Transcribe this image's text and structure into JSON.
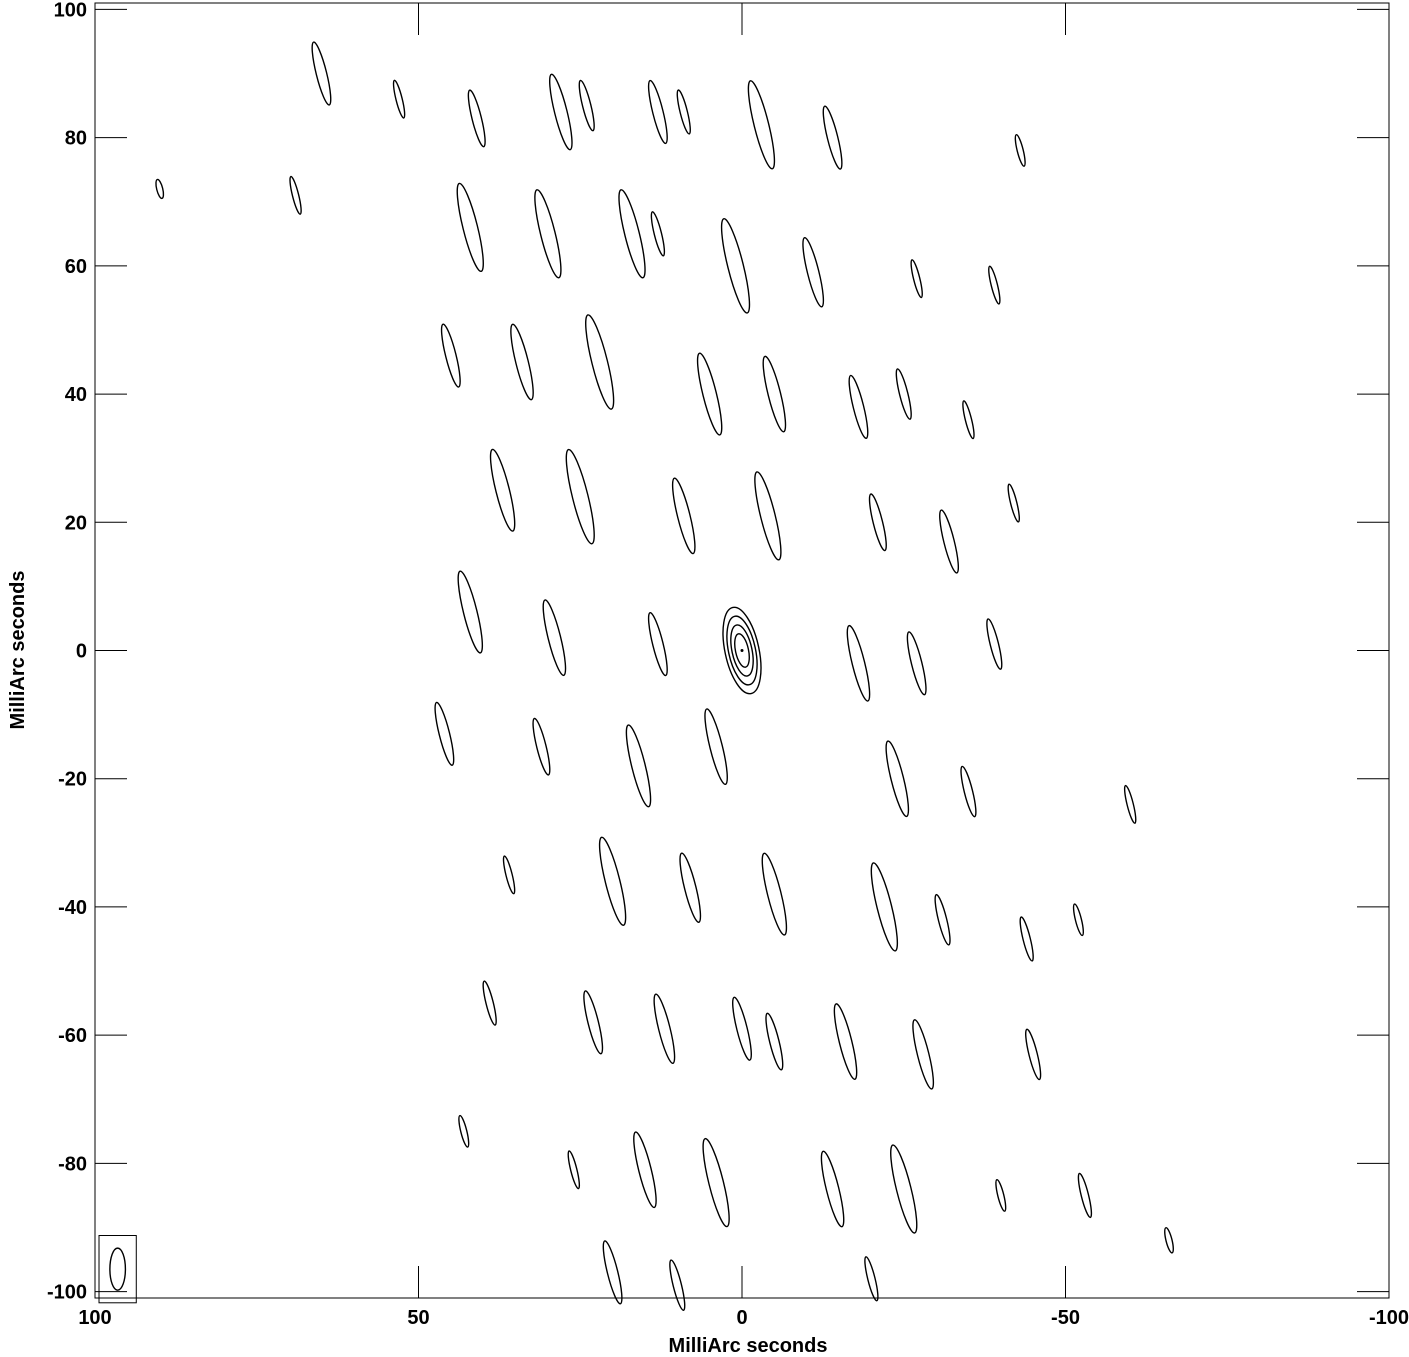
{
  "chart_data": {
    "type": "contour",
    "title": "",
    "xlabel": "MilliArc seconds",
    "ylabel": "MilliArc seconds",
    "xlim": [
      100,
      -100
    ],
    "ylim": [
      -101,
      101
    ],
    "x_ticks": [
      100,
      50,
      0,
      -50,
      -100
    ],
    "y_ticks": [
      100,
      80,
      60,
      40,
      20,
      0,
      -20,
      -40,
      -60,
      -80,
      -100
    ],
    "x_tick_labels": [
      "100",
      "50",
      "0",
      "-50",
      "-100"
    ],
    "y_tick_labels": [
      "100",
      "80",
      "60",
      "40",
      "20",
      "0",
      "-20",
      "-40",
      "-60",
      "-80",
      "-100"
    ],
    "grid": false,
    "contour_color": "#000000",
    "main_source": {
      "x": 0,
      "y": 0,
      "levels": 4
    },
    "beam": {
      "x": 96.5,
      "y": -96.5,
      "major": 6.5,
      "minor": 2.4
    },
    "features": [
      {
        "x": 65,
        "y": 90,
        "len": 10
      },
      {
        "x": 53,
        "y": 86,
        "len": 6
      },
      {
        "x": 41,
        "y": 83,
        "len": 9
      },
      {
        "x": 28,
        "y": 84,
        "len": 12
      },
      {
        "x": 24,
        "y": 85,
        "len": 8
      },
      {
        "x": 13,
        "y": 84,
        "len": 10
      },
      {
        "x": 9,
        "y": 84,
        "len": 7
      },
      {
        "x": -3,
        "y": 82,
        "len": 14
      },
      {
        "x": -14,
        "y": 80,
        "len": 10
      },
      {
        "x": -43,
        "y": 78,
        "len": 5
      },
      {
        "x": 90,
        "y": 72,
        "len": 3
      },
      {
        "x": 69,
        "y": 71,
        "len": 6
      },
      {
        "x": 42,
        "y": 66,
        "len": 14
      },
      {
        "x": 30,
        "y": 65,
        "len": 14
      },
      {
        "x": 17,
        "y": 65,
        "len": 14
      },
      {
        "x": 13,
        "y": 65,
        "len": 7
      },
      {
        "x": 1,
        "y": 60,
        "len": 15
      },
      {
        "x": -11,
        "y": 59,
        "len": 11
      },
      {
        "x": -27,
        "y": 58,
        "len": 6
      },
      {
        "x": -39,
        "y": 57,
        "len": 6
      },
      {
        "x": 45,
        "y": 46,
        "len": 10
      },
      {
        "x": 34,
        "y": 45,
        "len": 12
      },
      {
        "x": 22,
        "y": 45,
        "len": 15
      },
      {
        "x": 5,
        "y": 40,
        "len": 13
      },
      {
        "x": -5,
        "y": 40,
        "len": 12
      },
      {
        "x": -18,
        "y": 38,
        "len": 10
      },
      {
        "x": -25,
        "y": 40,
        "len": 8
      },
      {
        "x": -35,
        "y": 36,
        "len": 6
      },
      {
        "x": 37,
        "y": 25,
        "len": 13
      },
      {
        "x": 25,
        "y": 24,
        "len": 15
      },
      {
        "x": 9,
        "y": 21,
        "len": 12
      },
      {
        "x": -4,
        "y": 21,
        "len": 14
      },
      {
        "x": -21,
        "y": 20,
        "len": 9
      },
      {
        "x": -32,
        "y": 17,
        "len": 10
      },
      {
        "x": -42,
        "y": 23,
        "len": 6
      },
      {
        "x": 42,
        "y": 6,
        "len": 13
      },
      {
        "x": 29,
        "y": 2,
        "len": 12
      },
      {
        "x": 13,
        "y": 1,
        "len": 10
      },
      {
        "x": -18,
        "y": -2,
        "len": 12
      },
      {
        "x": -27,
        "y": -2,
        "len": 10
      },
      {
        "x": -39,
        "y": 1,
        "len": 8
      },
      {
        "x": 46,
        "y": -13,
        "len": 10
      },
      {
        "x": 31,
        "y": -15,
        "len": 9
      },
      {
        "x": 16,
        "y": -18,
        "len": 13
      },
      {
        "x": 4,
        "y": -15,
        "len": 12
      },
      {
        "x": -24,
        "y": -20,
        "len": 12
      },
      {
        "x": -35,
        "y": -22,
        "len": 8
      },
      {
        "x": -60,
        "y": -24,
        "len": 6
      },
      {
        "x": 36,
        "y": -35,
        "len": 6
      },
      {
        "x": 20,
        "y": -36,
        "len": 14
      },
      {
        "x": 8,
        "y": -37,
        "len": 11
      },
      {
        "x": -5,
        "y": -38,
        "len": 13
      },
      {
        "x": -22,
        "y": -40,
        "len": 14
      },
      {
        "x": -31,
        "y": -42,
        "len": 8
      },
      {
        "x": -44,
        "y": -45,
        "len": 7
      },
      {
        "x": -52,
        "y": -42,
        "len": 5
      },
      {
        "x": 39,
        "y": -55,
        "len": 7
      },
      {
        "x": 23,
        "y": -58,
        "len": 10
      },
      {
        "x": 12,
        "y": -59,
        "len": 11
      },
      {
        "x": 0,
        "y": -59,
        "len": 10
      },
      {
        "x": -5,
        "y": -61,
        "len": 9
      },
      {
        "x": -16,
        "y": -61,
        "len": 12
      },
      {
        "x": -28,
        "y": -63,
        "len": 11
      },
      {
        "x": -45,
        "y": -63,
        "len": 8
      },
      {
        "x": 43,
        "y": -75,
        "len": 5
      },
      {
        "x": 26,
        "y": -81,
        "len": 6
      },
      {
        "x": 15,
        "y": -81,
        "len": 12
      },
      {
        "x": 4,
        "y": -83,
        "len": 14
      },
      {
        "x": -14,
        "y": -84,
        "len": 12
      },
      {
        "x": -25,
        "y": -84,
        "len": 14
      },
      {
        "x": -40,
        "y": -85,
        "len": 5
      },
      {
        "x": -53,
        "y": -85,
        "len": 7
      },
      {
        "x": -66,
        "y": -92,
        "len": 4
      },
      {
        "x": 20,
        "y": -97,
        "len": 10
      },
      {
        "x": 10,
        "y": -99,
        "len": 8
      },
      {
        "x": -20,
        "y": -98,
        "len": 7
      }
    ]
  }
}
